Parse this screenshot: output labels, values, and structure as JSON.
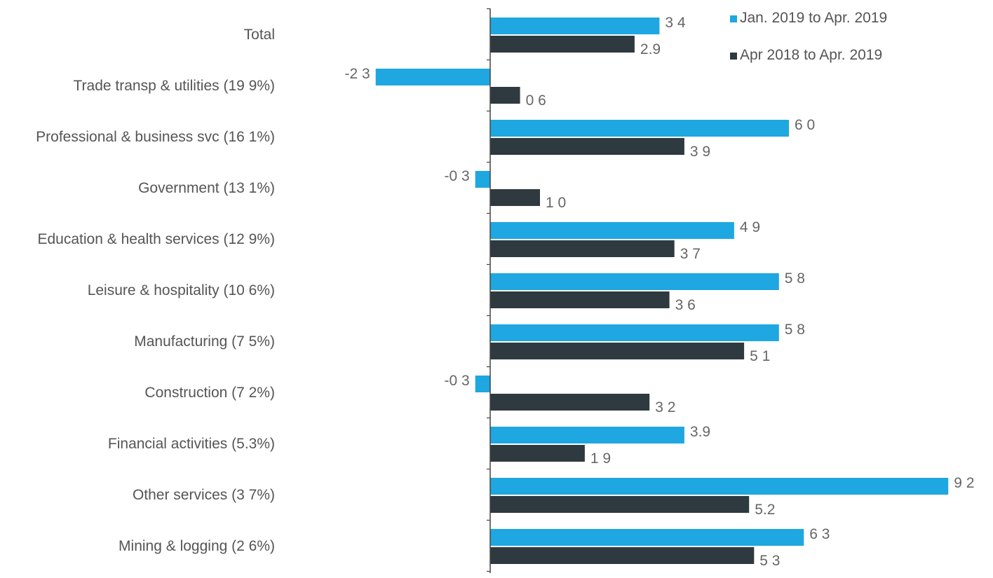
{
  "chart_data": {
    "type": "bar",
    "orientation": "horizontal",
    "categories": [
      "Total",
      "Trade  transp & utilities (19 9%)",
      "Professional & business svc (16 1%)",
      "Government (13 1%)",
      "Education & health services (12 9%)",
      "Leisure & hospitality (10 6%)",
      "Manufacturing (7 5%)",
      "Construction (7 2%)",
      "Financial activities (5.3%)",
      "Other services (3 7%)",
      "Mining & logging (2 6%)"
    ],
    "series": [
      {
        "name": "Jan. 2019 to Apr. 2019",
        "color": "#1ea7e0",
        "values": [
          3.4,
          -2.3,
          6.0,
          -0.3,
          4.9,
          5.8,
          5.8,
          -0.3,
          3.9,
          9.2,
          6.3
        ],
        "labels": [
          "3 4",
          "-2 3",
          "6 0",
          "-0 3",
          "4 9",
          "5 8",
          "5 8",
          "-0 3",
          "3.9",
          "9 2",
          "6 3"
        ]
      },
      {
        "name": "Apr  2018 to Apr. 2019",
        "color": "#2e3a40",
        "values": [
          2.9,
          0.6,
          3.9,
          1.0,
          3.7,
          3.6,
          5.1,
          3.2,
          1.9,
          5.2,
          5.3
        ],
        "labels": [
          "2.9",
          "0 6",
          "3 9",
          "1 0",
          "3 7",
          "3 6",
          "5 1",
          "3 2",
          "1 9",
          "5.2",
          "5 3"
        ]
      }
    ],
    "xlim": [
      -2.3,
      9.2
    ],
    "grid": false,
    "legend": "top-right"
  }
}
